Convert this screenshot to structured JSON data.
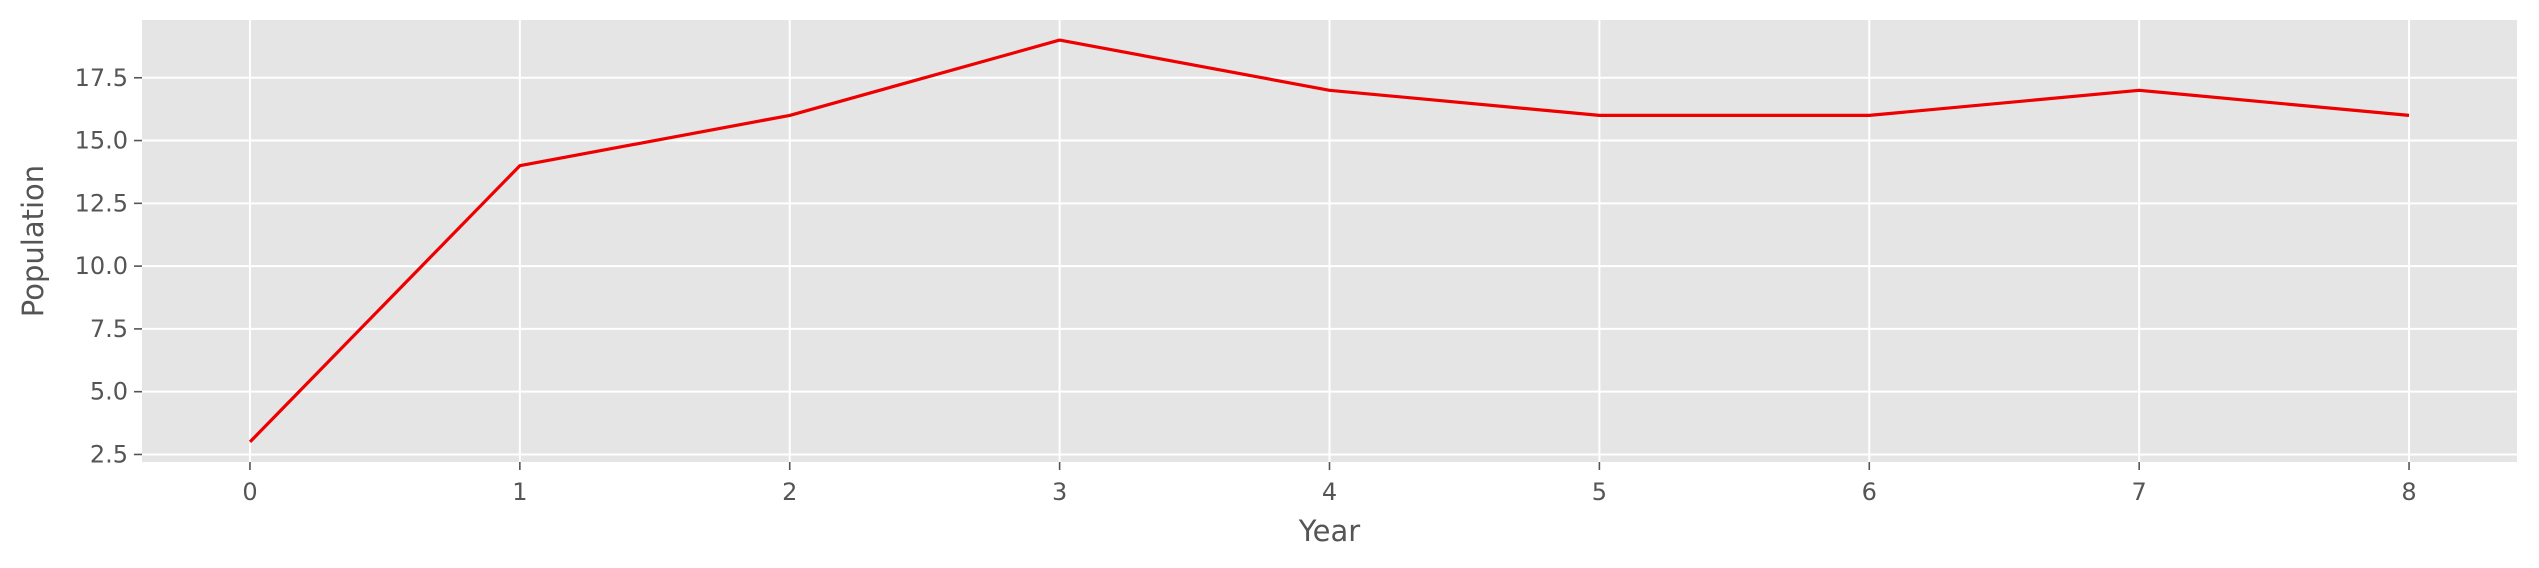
{
  "chart_data": {
    "type": "line",
    "title": "",
    "xlabel": "Year",
    "ylabel": "Population",
    "x": [
      0,
      1,
      2,
      3,
      4,
      5,
      6,
      7,
      8
    ],
    "series": [
      {
        "values": [
          3,
          14,
          16,
          19,
          17,
          16,
          16,
          17,
          16
        ],
        "color": "#ee0000"
      }
    ],
    "xlim": [
      -0.4,
      8.4
    ],
    "ylim": [
      2.2,
      19.8
    ],
    "xticks": [
      0,
      1,
      2,
      3,
      4,
      5,
      6,
      7,
      8
    ],
    "xtick_labels": [
      "0",
      "1",
      "2",
      "3",
      "4",
      "5",
      "6",
      "7",
      "8"
    ],
    "yticks": [
      2.5,
      5.0,
      7.5,
      10.0,
      12.5,
      15.0,
      17.5
    ],
    "ytick_labels": [
      "2.5",
      "5.0",
      "7.5",
      "10.0",
      "12.5",
      "15.0",
      "17.5"
    ],
    "grid": true,
    "legend": "none",
    "style": {
      "plot_background": "#e5e5e5",
      "grid_color": "#ffffff",
      "text_color": "#555555"
    }
  }
}
